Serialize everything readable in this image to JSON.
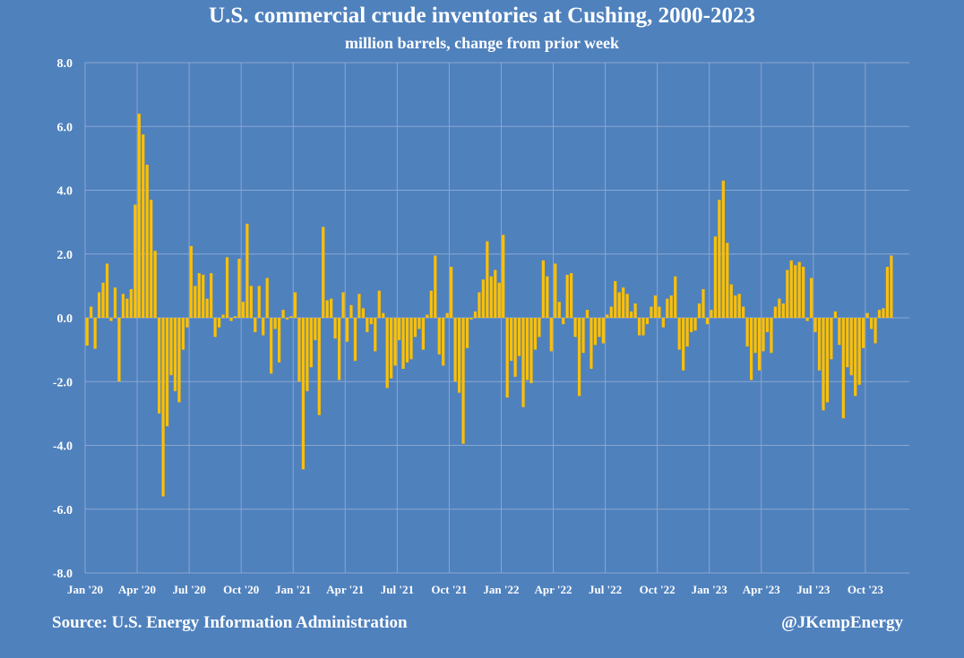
{
  "colors": {
    "background": "#4f81bd",
    "bar": "#ffc000",
    "grid": "#8aa7cf"
  },
  "chart_data": {
    "type": "bar",
    "title": "U.S. commercial crude inventories at Cushing, 2000-2023",
    "subtitle": "million barrels, change from prior week",
    "xlabel": "",
    "ylabel": "",
    "ylim": [
      -8,
      8
    ],
    "yticks": [
      "8.0",
      "6.0",
      "4.0",
      "2.0",
      "0.0",
      "-2.0",
      "-4.0",
      "-6.0",
      "-8.0"
    ],
    "ytick_values": [
      8,
      6,
      4,
      2,
      0,
      -2,
      -4,
      -6,
      -8
    ],
    "xtick_labels": [
      "Jan '20",
      "Apr '20",
      "Jul '20",
      "Oct '20",
      "Jan '21",
      "Apr '21",
      "Jul '21",
      "Oct '21",
      "Jan '22",
      "Apr '22",
      "Jul '22",
      "Oct '22",
      "Jan '23",
      "Apr '23",
      "Jul '23",
      "Oct '23"
    ],
    "xtick_week_index": [
      0,
      13,
      26,
      39,
      52,
      65,
      78,
      91,
      104,
      117,
      130,
      143,
      156,
      169,
      182,
      195
    ],
    "grid": true,
    "frequency": "weekly",
    "values": [
      -0.87,
      0.35,
      -0.97,
      0.8,
      1.1,
      1.7,
      -0.1,
      0.95,
      -2.0,
      0.75,
      0.6,
      0.9,
      3.55,
      6.4,
      5.75,
      4.8,
      3.7,
      2.1,
      -3.0,
      -5.6,
      -3.4,
      -1.8,
      -2.3,
      -2.65,
      -1.0,
      -0.3,
      2.25,
      1.0,
      1.4,
      1.35,
      0.6,
      1.4,
      -0.6,
      -0.3,
      0.1,
      1.9,
      -0.1,
      0.05,
      1.85,
      0.5,
      2.95,
      1.0,
      -0.45,
      1.0,
      -0.55,
      1.25,
      -1.75,
      -0.35,
      -1.4,
      0.25,
      -0.05,
      0.05,
      0.8,
      -2.0,
      -4.75,
      -2.3,
      -1.55,
      -0.7,
      -3.05,
      2.85,
      0.55,
      0.6,
      -0.65,
      -1.95,
      0.8,
      -0.75,
      0.4,
      -1.35,
      0.75,
      0.3,
      -0.45,
      -0.2,
      -1.05,
      0.85,
      0.15,
      -2.2,
      -1.9,
      -1.5,
      -0.7,
      -1.6,
      -1.4,
      -1.3,
      -0.6,
      -0.35,
      -1.0,
      0.1,
      0.85,
      1.95,
      -1.15,
      -1.5,
      0.15,
      1.6,
      -2.0,
      -2.35,
      -3.95,
      -0.95,
      -0.05,
      0.2,
      0.8,
      1.2,
      2.4,
      1.3,
      1.5,
      1.1,
      2.6,
      -2.5,
      -1.35,
      -1.85,
      -1.2,
      -2.8,
      -1.95,
      -2.05,
      -1.0,
      -0.6,
      1.8,
      1.3,
      -1.05,
      1.7,
      0.5,
      -0.2,
      1.35,
      1.4,
      -0.6,
      -2.45,
      -1.1,
      0.25,
      -1.6,
      -0.85,
      -0.6,
      -0.8,
      0.1,
      0.35,
      1.15,
      0.8,
      0.95,
      0.75,
      0.2,
      0.45,
      -0.55,
      -0.55,
      -0.2,
      0.35,
      0.7,
      0.35,
      -0.3,
      0.6,
      0.7,
      1.3,
      -1.0,
      -1.65,
      -0.9,
      -0.45,
      -0.4,
      0.45,
      0.9,
      -0.2,
      0.25,
      2.55,
      3.7,
      4.3,
      2.35,
      1.05,
      0.7,
      0.75,
      0.35,
      -0.9,
      -1.95,
      -1.1,
      -1.65,
      -1.05,
      -0.45,
      -1.1,
      0.35,
      0.6,
      0.45,
      1.5,
      1.8,
      1.65,
      1.75,
      1.6,
      -0.1,
      1.25,
      -0.45,
      -1.65,
      -2.9,
      -2.65,
      -1.3,
      0.2,
      -0.85,
      -3.15,
      -1.55,
      -1.8,
      -2.45,
      -2.1,
      -0.95,
      0.15,
      -0.35,
      -0.8,
      0.25,
      0.3,
      1.6,
      1.95
    ]
  },
  "footer": {
    "source": "Source: U.S. Energy Information Administration",
    "handle": "@JKempEnergy"
  }
}
